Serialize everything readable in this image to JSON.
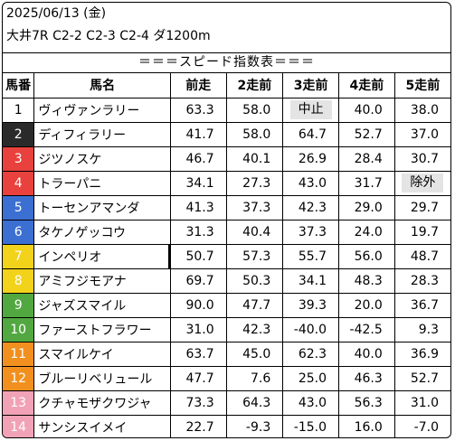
{
  "header": {
    "date": "2025/06/13 (金)",
    "race": "大井7R C2-2 C2-3 C2-4 ダ1200m"
  },
  "title": "＝＝＝スピード指数表＝＝＝",
  "columns": [
    "馬番",
    "馬名",
    "前走",
    "2走前",
    "3走前",
    "4走前",
    "5走前"
  ],
  "colors": {
    "gate1": "#ffffff",
    "gate2": "#2a2a2a",
    "gate3": "#e8413e",
    "gate4": "#3b6fd1",
    "gate5": "#f2d21b",
    "gate6": "#52a840",
    "gate7": "#f2901f",
    "gate8": "#f2a2b6",
    "note_bg": "#e4e4e4"
  },
  "rows": [
    {
      "num": "1",
      "gate": 1,
      "name": "ヴィヴァンラリー",
      "s1": "63.3",
      "s2": "58.0",
      "s3": "中止",
      "s4": "40.0",
      "s5": "38.0"
    },
    {
      "num": "2",
      "gate": 2,
      "name": "ディフィラリー",
      "s1": "41.7",
      "s2": "58.0",
      "s3": "64.7",
      "s4": "52.7",
      "s5": "37.0"
    },
    {
      "num": "3",
      "gate": 3,
      "name": "ジツノスケ",
      "s1": "46.7",
      "s2": "40.1",
      "s3": "26.9",
      "s4": "28.4",
      "s5": "30.7"
    },
    {
      "num": "4",
      "gate": 3,
      "name": "トラーパニ",
      "s1": "34.1",
      "s2": "27.3",
      "s3": "43.0",
      "s4": "31.7",
      "s5": "除外"
    },
    {
      "num": "5",
      "gate": 4,
      "name": "トーセンアマンダ",
      "s1": "41.3",
      "s2": "37.3",
      "s3": "42.3",
      "s4": "29.0",
      "s5": "29.7"
    },
    {
      "num": "6",
      "gate": 4,
      "name": "タケノゲッコウ",
      "s1": "31.3",
      "s2": "40.4",
      "s3": "37.3",
      "s4": "24.0",
      "s5": "19.7"
    },
    {
      "num": "7",
      "gate": 5,
      "name": "インペリオ",
      "s1": "50.7",
      "s2": "57.3",
      "s3": "55.7",
      "s4": "56.0",
      "s5": "48.7"
    },
    {
      "num": "8",
      "gate": 5,
      "name": "アミフジモアナ",
      "s1": "69.7",
      "s2": "50.3",
      "s3": "34.1",
      "s4": "48.3",
      "s5": "28.3"
    },
    {
      "num": "9",
      "gate": 6,
      "name": "ジャズスマイル",
      "s1": "90.0",
      "s2": "47.7",
      "s3": "39.3",
      "s4": "20.0",
      "s5": "36.7"
    },
    {
      "num": "10",
      "gate": 6,
      "name": "ファーストフラワー",
      "s1": "31.0",
      "s2": "42.3",
      "s3": "-40.0",
      "s4": "-42.5",
      "s5": "9.3"
    },
    {
      "num": "11",
      "gate": 7,
      "name": "スマイルケイ",
      "s1": "63.7",
      "s2": "45.0",
      "s3": "62.3",
      "s4": "40.0",
      "s5": "36.9"
    },
    {
      "num": "12",
      "gate": 7,
      "name": "ブルーリベリュール",
      "s1": "47.7",
      "s2": "7.6",
      "s3": "25.0",
      "s4": "46.3",
      "s5": "52.7"
    },
    {
      "num": "13",
      "gate": 8,
      "name": "クチャモザクワジャ",
      "s1": "73.3",
      "s2": "64.3",
      "s3": "43.0",
      "s4": "56.3",
      "s5": "31.0"
    },
    {
      "num": "14",
      "gate": 8,
      "name": "サンシスイメイ",
      "s1": "22.7",
      "s2": "-9.3",
      "s3": "-15.0",
      "s4": "16.0",
      "s5": "-7.0"
    }
  ]
}
